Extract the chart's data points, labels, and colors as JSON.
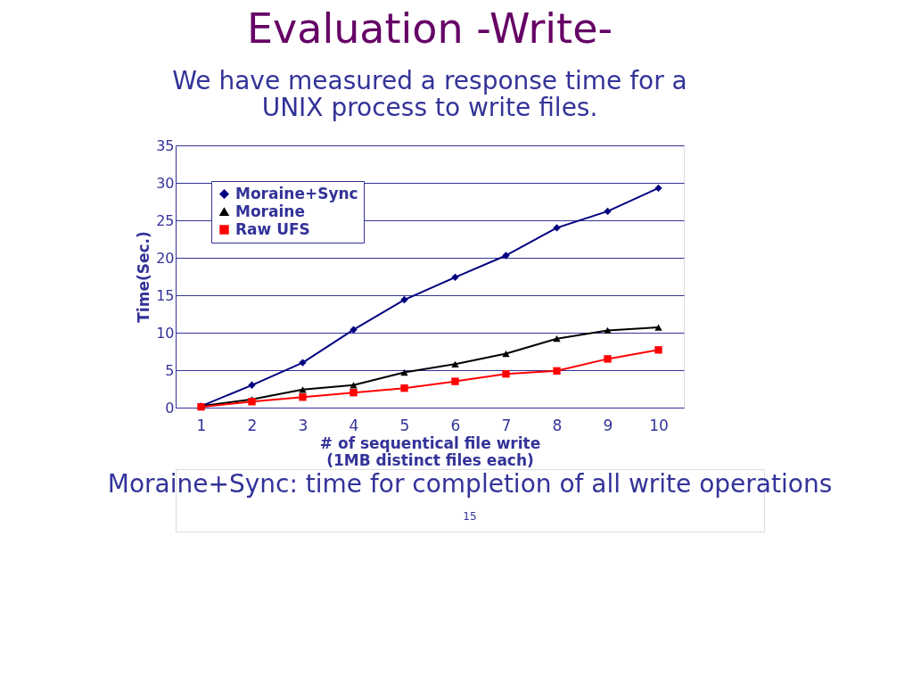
{
  "chart_data": {
    "type": "line",
    "title": "Evaluation -Write-",
    "subtitle": "We have measured a response time for a\nUNIX process to write files.",
    "xlabel": "# of sequentical file write\n(1MB distinct files each)",
    "ylabel": "Time(Sec.)",
    "categories": [
      "1",
      "2",
      "3",
      "4",
      "5",
      "6",
      "7",
      "8",
      "9",
      "10"
    ],
    "series": [
      {
        "name": "Moraine+Sync",
        "color": "#000080",
        "marker": "diamond",
        "values": [
          0.2,
          3.0,
          6.0,
          10.4,
          14.4,
          17.4,
          20.3,
          24.0,
          26.2,
          29.3
        ]
      },
      {
        "name": "Moraine",
        "color": "#000000",
        "marker": "triangle",
        "values": [
          0.2,
          1.1,
          2.4,
          3.0,
          4.7,
          5.8,
          7.2,
          9.2,
          10.3,
          10.7
        ]
      },
      {
        "name": "Raw UFS",
        "color": "#ff0000",
        "marker": "square",
        "values": [
          0.1,
          0.8,
          1.4,
          2.0,
          2.6,
          3.5,
          4.5,
          4.9,
          6.5,
          7.7
        ]
      }
    ],
    "ylim": [
      0,
      35
    ],
    "yticks": [
      0,
      5,
      10,
      15,
      20,
      25,
      30,
      35
    ],
    "grid": "y",
    "legend": "top left",
    "line_style": "solid",
    "annotations": [
      "Moraine+Sync: time for completion of all write operations",
      "15"
    ]
  }
}
